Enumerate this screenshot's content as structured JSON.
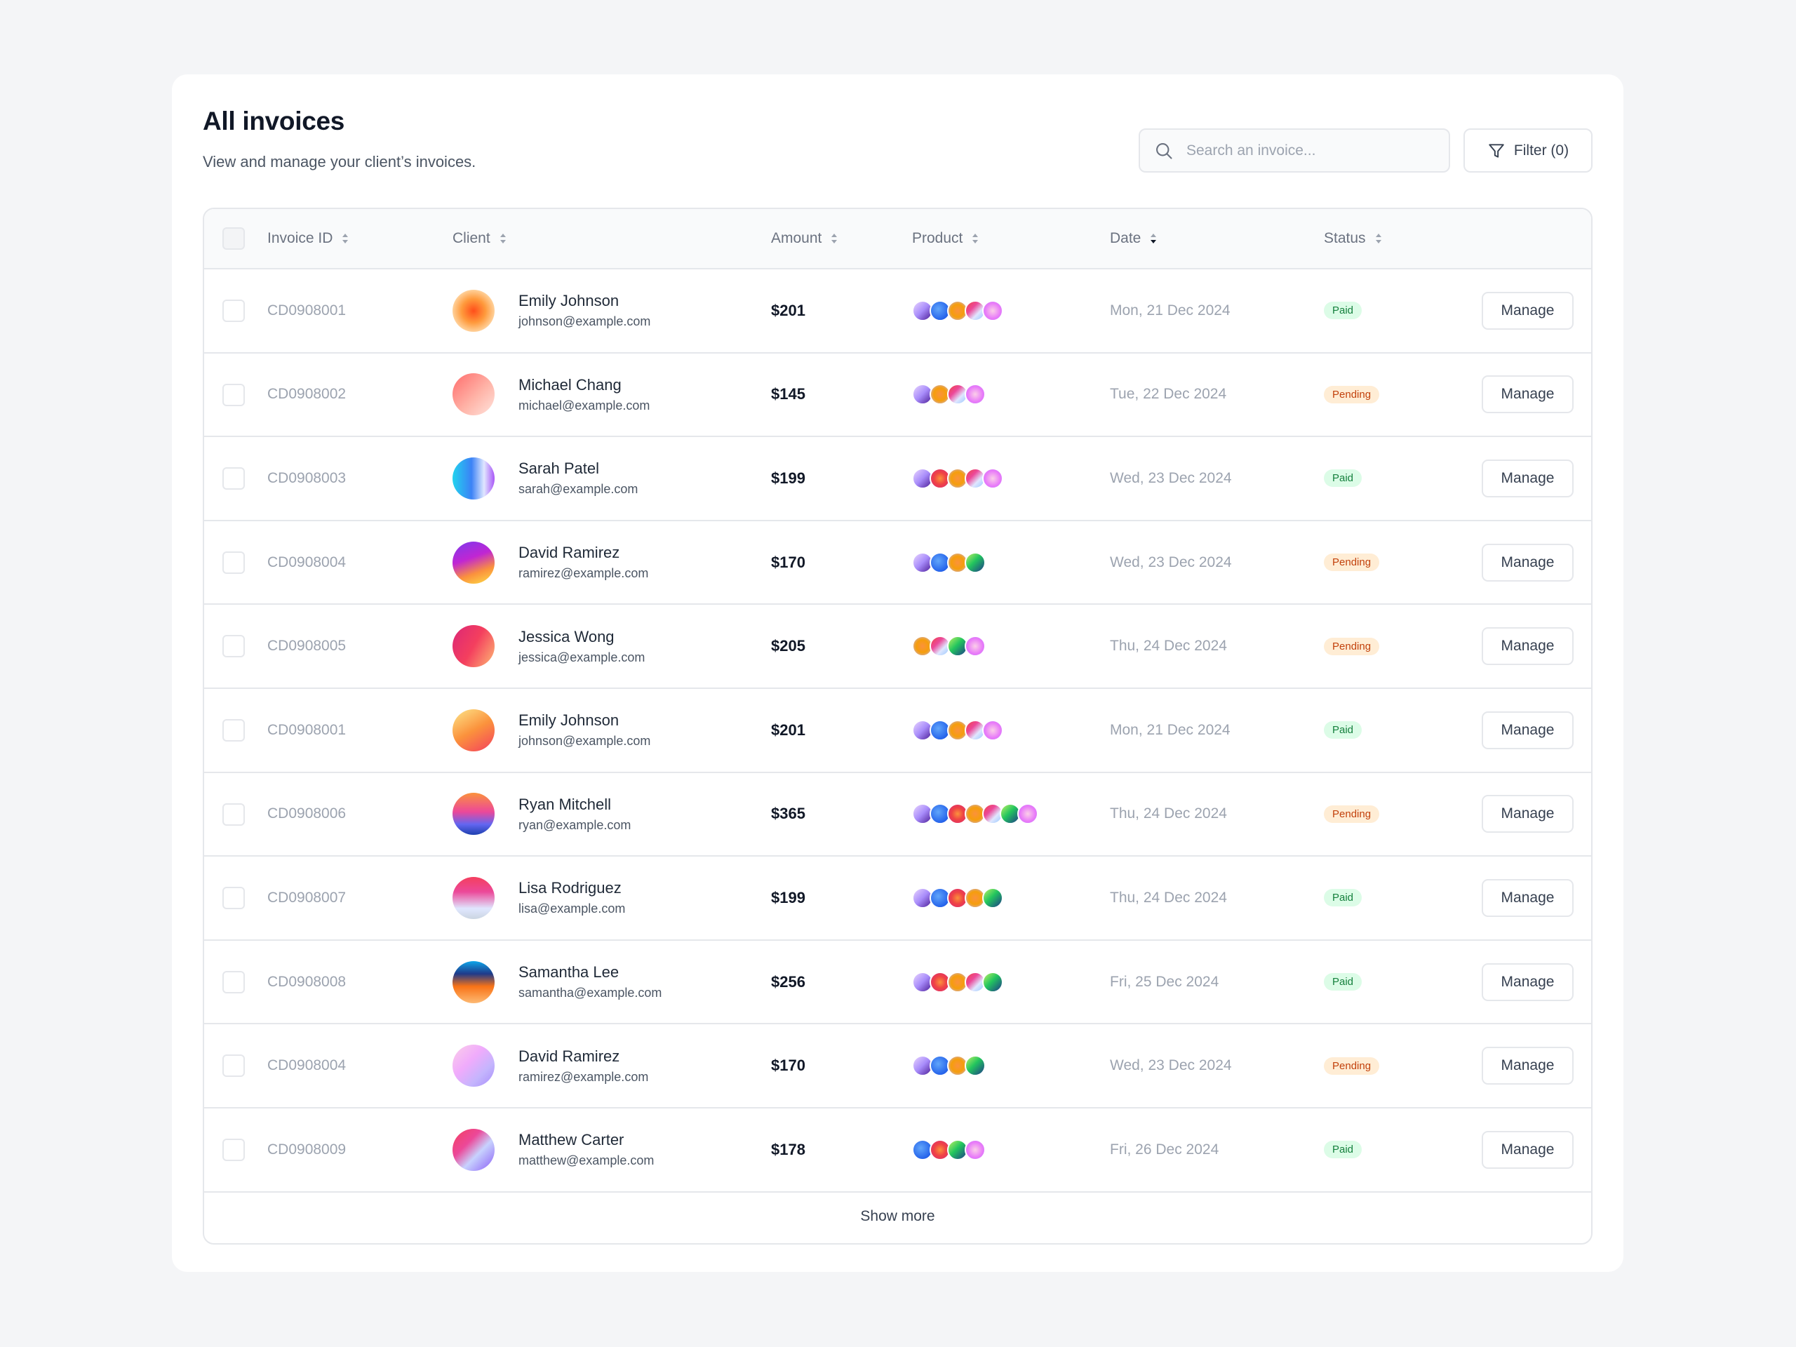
{
  "header": {
    "title": "All invoices",
    "subtitle": "View and manage your client’s invoices."
  },
  "search": {
    "placeholder": "Search an invoice..."
  },
  "filter": {
    "label": "Filter (0)"
  },
  "table": {
    "columns": [
      "Invoice ID",
      "Client",
      "Amount",
      "Product",
      "Date",
      "Status"
    ],
    "sorted_column": "Date",
    "manage_label": "Manage",
    "show_more_label": "Show more",
    "rows": [
      {
        "id": "CD0908001",
        "name": "Emily Johnson",
        "email": "johnson@example.com",
        "amount": "$201",
        "date": "Mon, 21 Dec 2024",
        "status": "Paid",
        "avatar": "radial-gradient(circle at 50% 50%, #ff4e1a 0%, #ff9a3c 40%, #ffd9a8 75%, #fff0dd 100%)",
        "products": [
          "p1",
          "p2",
          "p3",
          "p4",
          "p5"
        ]
      },
      {
        "id": "CD0908002",
        "name": "Michael Chang",
        "email": "michael@example.com",
        "amount": "$145",
        "date": "Tue, 22 Dec 2024",
        "status": "Pending",
        "avatar": "linear-gradient(135deg, #ff6b6b 0%, #ffb3a7 55%, #ffe4dd 100%)",
        "products": [
          "p1",
          "p3",
          "p4",
          "p5"
        ]
      },
      {
        "id": "CD0908003",
        "name": "Sarah Patel",
        "email": "sarah@example.com",
        "amount": "$199",
        "date": "Wed, 23 Dec 2024",
        "status": "Paid",
        "avatar": "linear-gradient(90deg, #22d3ee 0%, #3b82f6 45%, #e0e7ff 75%, #a855f7 100%)",
        "products": [
          "p1",
          "p6",
          "p3",
          "p4",
          "p5"
        ]
      },
      {
        "id": "CD0908004",
        "name": "David Ramirez",
        "email": "ramirez@example.com",
        "amount": "$170",
        "date": "Wed, 23 Dec 2024",
        "status": "Pending",
        "avatar": "linear-gradient(160deg, #7c3aed 0%, #c026d3 40%, #fb923c 70%, #fde047 100%)",
        "products": [
          "p1",
          "p2",
          "p3",
          "p7"
        ]
      },
      {
        "id": "CD0908005",
        "name": "Jessica Wong",
        "email": "jessica@example.com",
        "amount": "$205",
        "date": "Thu, 24 Dec 2024",
        "status": "Pending",
        "avatar": "linear-gradient(120deg, #db2777 0%, #f43f5e 50%, #fdba74 100%)",
        "products": [
          "p3",
          "p4",
          "p7",
          "p5"
        ]
      },
      {
        "id": "CD0908001",
        "name": "Emily Johnson",
        "email": "johnson@example.com",
        "amount": "$201",
        "date": "Mon, 21 Dec 2024",
        "status": "Paid",
        "avatar": "linear-gradient(150deg, #fde68a 0%, #fb923c 50%, #f43f5e 100%)",
        "products": [
          "p1",
          "p2",
          "p3",
          "p4",
          "p5"
        ]
      },
      {
        "id": "CD0908006",
        "name": "Ryan Mitchell",
        "email": "ryan@example.com",
        "amount": "$365",
        "date": "Thu, 24 Dec 2024",
        "status": "Pending",
        "avatar": "linear-gradient(180deg, #fb923c 0%, #ec4899 45%, #6366f1 75%, #1e40af 100%)",
        "products": [
          "p1",
          "p2",
          "p6",
          "p3",
          "p4",
          "p7",
          "p5"
        ]
      },
      {
        "id": "CD0908007",
        "name": "Lisa Rodriguez",
        "email": "lisa@example.com",
        "amount": "$199",
        "date": "Thu, 24 Dec 2024",
        "status": "Paid",
        "avatar": "linear-gradient(180deg, #f43f5e 0%, #ec4899 35%, #e0e7ff 75%, #cbd5e1 100%)",
        "products": [
          "p1",
          "p2",
          "p6",
          "p3",
          "p7"
        ]
      },
      {
        "id": "CD0908008",
        "name": "Samantha Lee",
        "email": "samantha@example.com",
        "amount": "$256",
        "date": "Fri, 25 Dec 2024",
        "status": "Paid",
        "avatar": "linear-gradient(180deg, #0ea5e9 0%, #1e3a8a 30%, #f97316 60%, #fdba74 100%)",
        "products": [
          "p1",
          "p6",
          "p3",
          "p4",
          "p7"
        ]
      },
      {
        "id": "CD0908004",
        "name": "David Ramirez",
        "email": "ramirez@example.com",
        "amount": "$170",
        "date": "Wed, 23 Dec 2024",
        "status": "Pending",
        "avatar": "linear-gradient(135deg, #fbcfe8 0%, #f0abfc 40%, #c4b5fd 70%, #a78bfa 100%)",
        "products": [
          "p1",
          "p2",
          "p3",
          "p7"
        ]
      },
      {
        "id": "CD0908009",
        "name": "Matthew Carter",
        "email": "matthew@example.com",
        "amount": "$178",
        "date": "Fri, 26 Dec 2024",
        "status": "Paid",
        "avatar": "linear-gradient(135deg, #f43f5e 0%, #ec4899 35%, #c7d2fe 60%, #8b5cf6 100%)",
        "products": [
          "p2",
          "p6",
          "p7",
          "p5"
        ]
      }
    ]
  },
  "product_gradients": {
    "p1": "linear-gradient(135deg, #e9d5ff 0%, #a78bfa 50%, #4c1d95 100%)",
    "p2": "radial-gradient(circle at 40% 40%, #60a5fa 0%, #2563eb 70%, #1e40af 100%)",
    "p3": "radial-gradient(circle at 50% 50%, #fb923c 0%, #f59e0b 50%, #c4b5fd 100%)",
    "p4": "linear-gradient(135deg, #ef4444 0%, #ec4899 35%, #e0e7ff 65%, #93c5fd 100%)",
    "p5": "radial-gradient(circle at 50% 50%, #fbcfe8 0%, #e879f9 60%, #c084fc 100%)",
    "p6": "radial-gradient(circle at 50% 50%, #fb923c 0%, #ef4444 45%, #db2777 100%)",
    "p7": "linear-gradient(135deg, #bef264 0%, #22c55e 45%, #1e3a8a 100%)"
  },
  "colors": {
    "paid_bg": "#dcfce7",
    "paid_text": "#15803d",
    "pending_bg": "#ffedd5",
    "pending_text": "#c2410c"
  }
}
